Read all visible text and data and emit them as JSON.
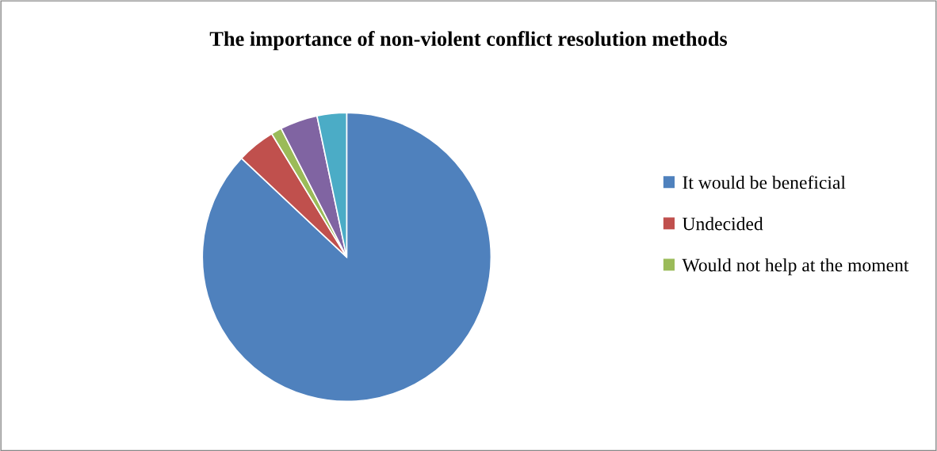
{
  "chart_data": {
    "type": "pie",
    "title": "The importance of non-violent conflict resolution methods",
    "categories": [
      "It would be beneficial",
      "Undecided",
      "Would not help at the moment",
      null,
      null
    ],
    "values": [
      87,
      4.3,
      1.2,
      4.2,
      3.3
    ],
    "colors": [
      "#4f81bd",
      "#c0504d",
      "#9bbb59",
      "#8064a2",
      "#4bacc6"
    ],
    "legend": "right"
  }
}
